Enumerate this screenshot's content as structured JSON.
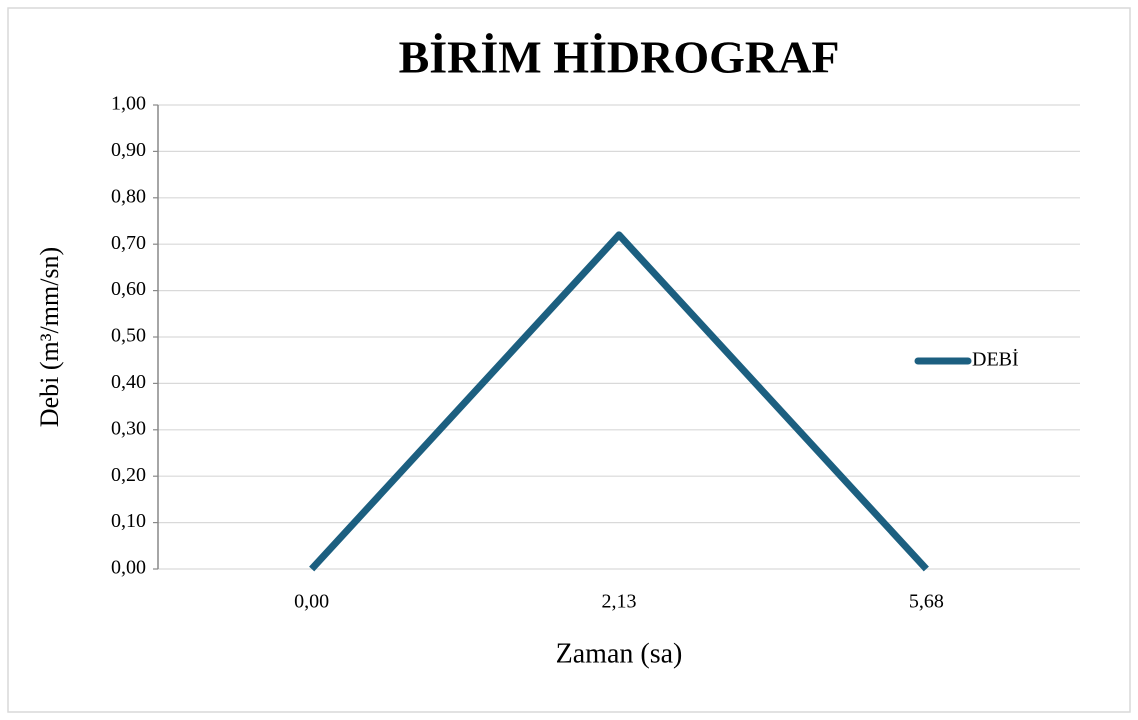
{
  "chart_data": {
    "type": "line",
    "title": "BİRİM HİDROGRAF",
    "x_label": "Zaman (sa)",
    "y_label": "Debi (m³/mm/sn)",
    "categories": [
      "0,00",
      "2,13",
      "5,68"
    ],
    "series": [
      {
        "name": "DEBİ",
        "color": "#1c5f80",
        "values": [
          0,
          0.72,
          0
        ]
      }
    ],
    "ylim": [
      0,
      1
    ],
    "yticks": [
      {
        "value": 0,
        "label": "0,00"
      },
      {
        "value": 0.1,
        "label": "0,10"
      },
      {
        "value": 0.2,
        "label": "0,20"
      },
      {
        "value": 0.3,
        "label": "0,30"
      },
      {
        "value": 0.4,
        "label": "0,40"
      },
      {
        "value": 0.5,
        "label": "0,50"
      },
      {
        "value": 0.6,
        "label": "0,60"
      },
      {
        "value": 0.7,
        "label": "0,70"
      },
      {
        "value": 0.8,
        "label": "0,80"
      },
      {
        "value": 0.9,
        "label": "0,90"
      },
      {
        "value": 1,
        "label": "1,00"
      }
    ],
    "grid": true,
    "legend": "right"
  }
}
